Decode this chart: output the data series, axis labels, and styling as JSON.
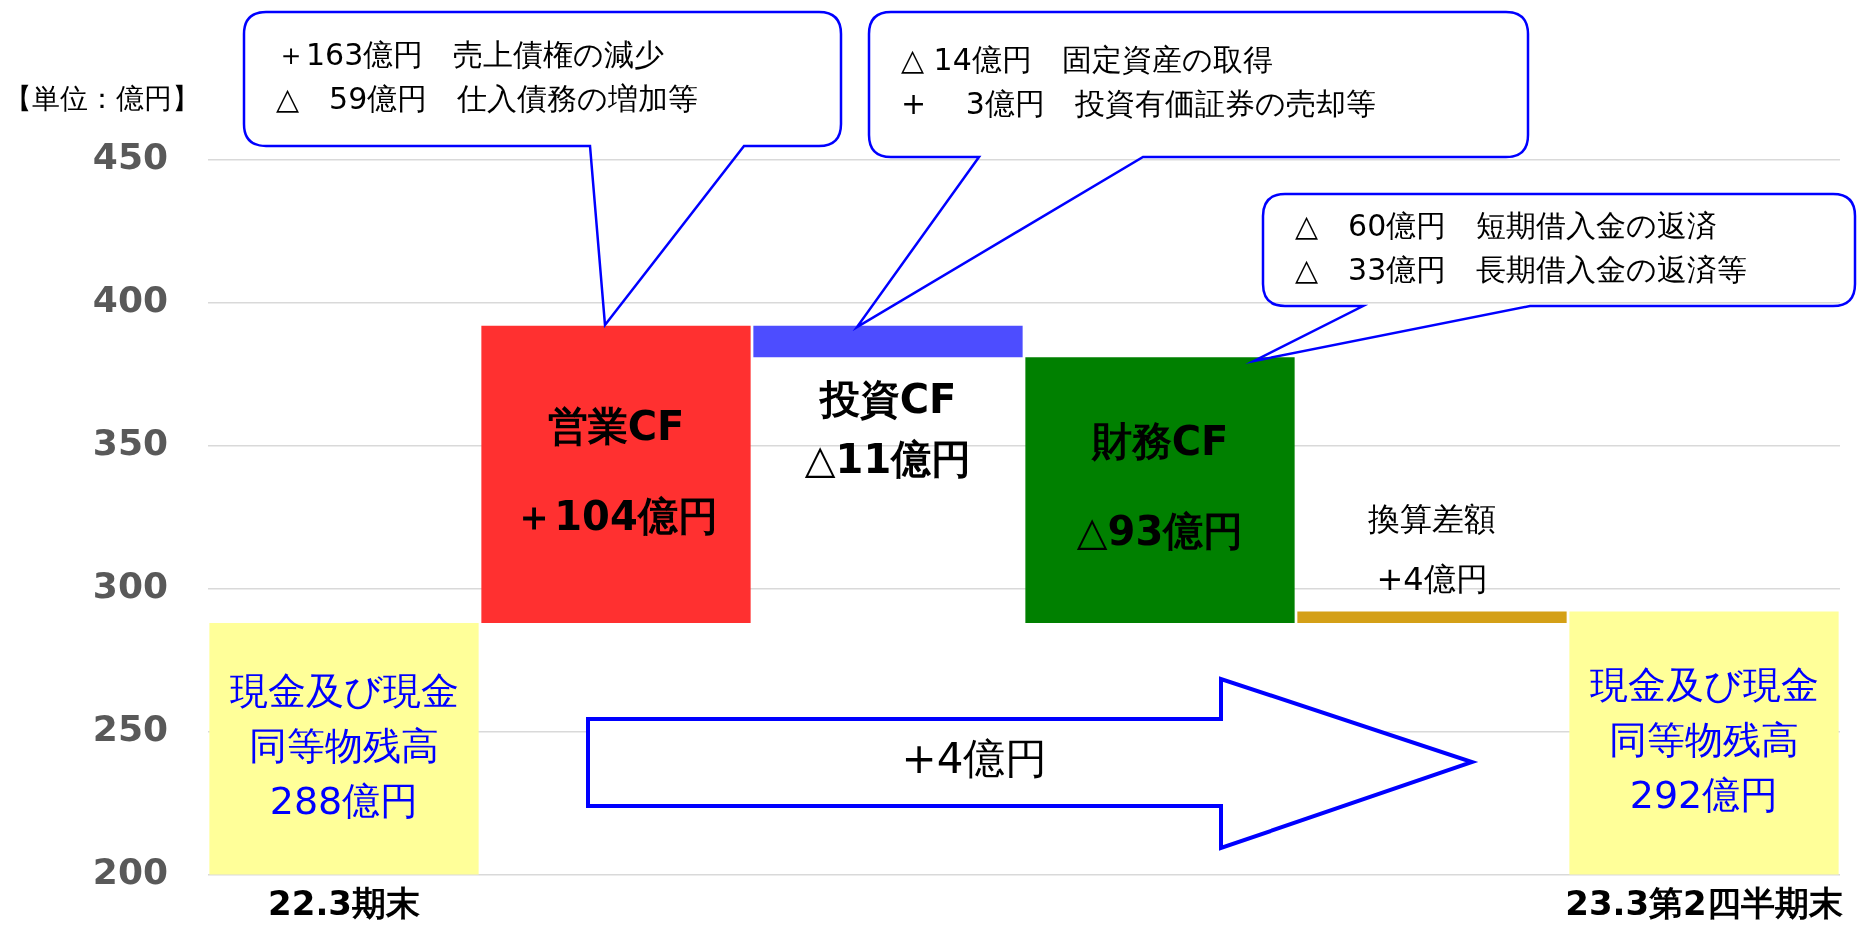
{
  "chart_data": {
    "type": "bar",
    "ylabel": "【単位：億円】",
    "categories": [
      "22.3期末",
      null,
      null,
      null,
      null,
      "23.3第2四半期末"
    ],
    "values": [
      288,
      104,
      -11,
      -93,
      4,
      292
    ],
    "base": [
      null,
      288,
      392,
      381,
      288,
      null
    ],
    "colors": [
      "#ffff99",
      "#ff3030",
      "#4d4dff",
      "#008000",
      "#d4a017",
      "#ffff99"
    ],
    "value_labels": [
      "現金及び現金同等物残高\n288億円",
      "営業CF\n＋104億円",
      "投資CF\n△11億円",
      "財務CF\n△93億円",
      "換算差額\n+4億円",
      "現金及び現金同等物残高\n292億円"
    ],
    "ylim": [
      200,
      450
    ],
    "yticks": [
      200,
      250,
      300,
      350,
      400,
      450
    ],
    "grid": "y",
    "annotations": [
      "＋163億円　売上債権の減少\n△　59億円　仕入債務の増加等",
      "△ 14億円　固定資産の取得\n+　 3億円　投資有価証券の売却等",
      "△　60億円　短期借入金の返済\n△　33億円　長期借入金の返済等",
      "+4億円"
    ]
  }
}
